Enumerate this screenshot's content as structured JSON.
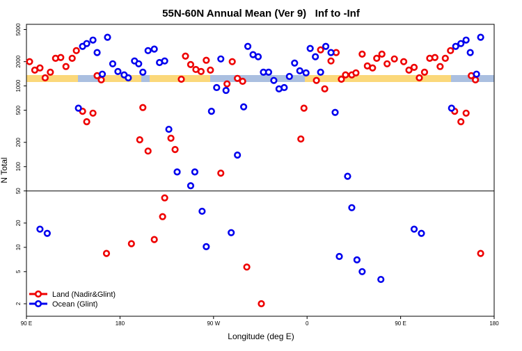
{
  "chart_data": {
    "type": "scatter",
    "title": "55N-60N Annual Mean (Ver 9)   Inf to -Inf",
    "x_label": "Longitude (deg E)",
    "y_label": "N Total",
    "xlim": [
      90,
      540
    ],
    "ylim": [
      1.4,
      5800
    ],
    "log_y": true,
    "hline": 50,
    "legend": "lower left",
    "xticks": [
      {
        "value": 90,
        "label": "90 E"
      },
      {
        "value": 180,
        "label": "180"
      },
      {
        "value": 270,
        "label": "90 W"
      },
      {
        "value": 360,
        "label": "0"
      },
      {
        "value": 450,
        "label": "90 E"
      },
      {
        "value": 540,
        "label": "180"
      }
    ],
    "yticks": [
      2,
      5,
      10,
      20,
      50,
      100,
      200,
      500,
      1000,
      2000,
      5000
    ],
    "series": [
      {
        "name": "Land (Nadir&Glint)",
        "color": "#ee0000",
        "x": [
          93,
          98,
          103,
          108,
          113,
          118,
          123,
          128,
          134,
          138,
          144,
          148,
          154,
          158,
          162,
          167,
          191,
          199,
          202,
          207,
          213,
          221,
          223,
          229,
          233,
          239,
          243,
          248,
          253,
          258,
          263,
          267,
          277,
          283,
          288,
          293,
          298,
          302,
          316,
          354,
          357,
          369,
          373,
          377,
          383,
          388,
          393,
          397,
          403,
          407,
          413,
          418,
          423,
          427,
          432,
          437,
          444,
          453,
          458,
          463,
          468,
          473,
          478,
          483,
          488,
          493,
          498,
          502,
          508,
          513,
          518,
          522,
          527
        ],
        "values": [
          2000,
          1570,
          1670,
          1260,
          1480,
          2200,
          2250,
          1740,
          2200,
          2740,
          485,
          360,
          460,
          1340,
          1190,
          8.4,
          11.1,
          215,
          540,
          156,
          12.5,
          24,
          41,
          225,
          163,
          1210,
          2340,
          1840,
          1600,
          1510,
          2080,
          1570,
          83,
          1060,
          2000,
          1240,
          1140,
          5.7,
          2.0,
          220,
          530,
          1170,
          2800,
          920,
          2040,
          2590,
          1210,
          1370,
          1370,
          1450,
          2480,
          1770,
          1670,
          2200,
          2480,
          1880,
          2160,
          2000,
          1570,
          1700,
          1260,
          1480,
          2200,
          2250,
          1740,
          2200,
          2740,
          485,
          360,
          460,
          1340,
          1190,
          8.4
        ]
      },
      {
        "name": "Ocean (Glint)",
        "color": "#0000ee",
        "x": [
          103,
          110,
          140,
          144,
          148,
          154,
          158,
          163,
          168,
          173,
          178,
          184,
          188,
          194,
          198,
          202,
          207,
          213,
          218,
          223,
          227,
          235,
          248,
          252,
          259,
          263,
          268,
          273,
          277,
          282,
          287,
          293,
          299,
          303,
          308,
          313,
          318,
          323,
          328,
          333,
          338,
          343,
          348,
          353,
          359,
          363,
          368,
          373,
          378,
          383,
          387,
          391,
          399,
          403,
          408,
          413,
          431,
          463,
          470,
          499,
          503,
          508,
          513,
          517,
          523,
          527
        ],
        "values": [
          16.8,
          14.9,
          530,
          3090,
          3350,
          3700,
          2590,
          1400,
          4010,
          1880,
          1510,
          1370,
          1260,
          2040,
          1880,
          1480,
          2740,
          2860,
          1950,
          2040,
          290,
          86,
          58,
          86,
          28,
          10.2,
          485,
          955,
          2160,
          880,
          15.2,
          139,
          550,
          3090,
          2440,
          2300,
          1480,
          1480,
          1170,
          920,
          955,
          1310,
          1920,
          1540,
          1450,
          2910,
          2300,
          1480,
          3090,
          2590,
          470,
          7.7,
          76,
          31,
          7.0,
          5.0,
          4.0,
          16.8,
          14.9,
          530,
          3090,
          3350,
          3700,
          2590,
          1400,
          4010
        ]
      }
    ]
  }
}
